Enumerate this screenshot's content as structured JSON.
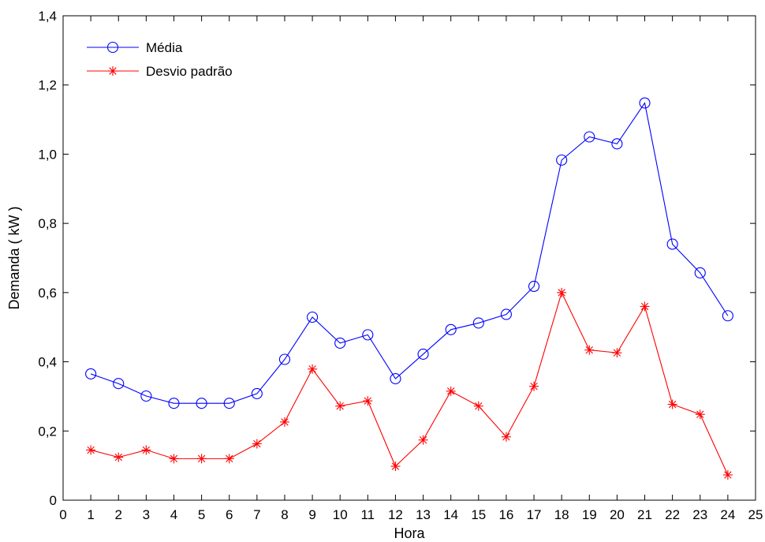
{
  "chart_data": {
    "type": "line",
    "xlabel": "Hora",
    "ylabel": "Demanda ( kW )",
    "xlim": [
      0,
      25
    ],
    "ylim": [
      0,
      1.4
    ],
    "xticks": [
      "0",
      "1",
      "2",
      "3",
      "4",
      "5",
      "6",
      "7",
      "8",
      "9",
      "10",
      "11",
      "12",
      "13",
      "14",
      "15",
      "16",
      "17",
      "18",
      "19",
      "20",
      "21",
      "22",
      "23",
      "24",
      "25"
    ],
    "yticks": [
      "0",
      "0,2",
      "0,4",
      "0,6",
      "0,8",
      "1,0",
      "1,2",
      "1,4"
    ],
    "grid": false,
    "legend_position": "top-left",
    "x": [
      1,
      2,
      3,
      4,
      5,
      6,
      7,
      8,
      9,
      10,
      11,
      12,
      13,
      14,
      15,
      16,
      17,
      18,
      19,
      20,
      21,
      22,
      23,
      24
    ],
    "series": [
      {
        "name": "Média",
        "color": "#0000ff",
        "marker": "circle",
        "values": [
          0.365,
          0.337,
          0.301,
          0.28,
          0.28,
          0.28,
          0.308,
          0.407,
          0.529,
          0.454,
          0.478,
          0.351,
          0.422,
          0.493,
          0.512,
          0.537,
          0.618,
          0.983,
          1.05,
          1.03,
          1.148,
          0.74,
          0.657,
          0.533
        ]
      },
      {
        "name": "Desvio padrão",
        "color": "#ff0000",
        "marker": "star",
        "values": [
          0.145,
          0.124,
          0.145,
          0.12,
          0.12,
          0.12,
          0.163,
          0.226,
          0.379,
          0.272,
          0.287,
          0.098,
          0.174,
          0.315,
          0.272,
          0.183,
          0.329,
          0.6,
          0.434,
          0.426,
          0.56,
          0.277,
          0.248,
          0.073
        ]
      }
    ]
  }
}
